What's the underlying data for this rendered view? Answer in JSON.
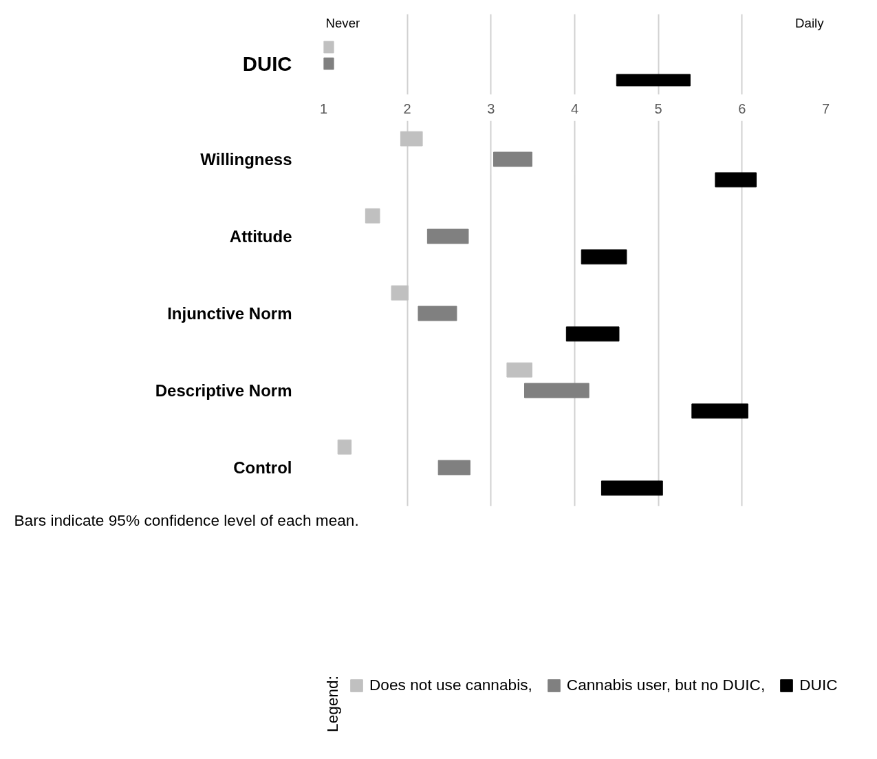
{
  "chart_data": [
    {
      "type": "bar",
      "orientation": "horizontal",
      "categories": [
        "DUIC"
      ],
      "xlim": [
        1,
        7
      ],
      "xticks": [
        1,
        2,
        3,
        4,
        5,
        6,
        7
      ],
      "tick_labels": "y",
      "grid": "x",
      "annotations": [
        "Never",
        "Daily"
      ],
      "series": [
        {
          "color": "#c0c0c0",
          "base": [
            1.0
          ],
          "values": [
            0.12
          ]
        },
        {
          "color": "#808080",
          "base": [
            1.0
          ],
          "values": [
            0.12
          ]
        },
        {
          "color": "#000000",
          "base": [
            4.5
          ],
          "values": [
            0.88
          ]
        }
      ]
    },
    {
      "type": "bar",
      "orientation": "horizontal",
      "categories": [
        "Willingness",
        "Attitude",
        "Injunctive Norm",
        "Descriptive Norm",
        "Control"
      ],
      "xlim": [
        1,
        7
      ],
      "xticks": [
        1,
        2,
        3,
        4,
        5,
        6,
        7
      ],
      "grid": "x",
      "legend": "bottom",
      "legend_title": "Legend:",
      "annotations": [
        "Bars indicate 95% confidence level of each mean."
      ],
      "series": [
        {
          "name": "Does not use cannabis,",
          "color": "#c0c0c0",
          "base": [
            1.92,
            1.5,
            1.81,
            3.19,
            1.17
          ],
          "values": [
            0.26,
            0.17,
            0.2,
            0.3,
            0.16
          ]
        },
        {
          "name": "Cannabis user, but no DUIC,",
          "color": "#808080",
          "base": [
            3.03,
            2.24,
            2.13,
            3.4,
            2.37
          ],
          "values": [
            0.46,
            0.49,
            0.46,
            0.77,
            0.38
          ]
        },
        {
          "name": "DUIC",
          "color": "#000000",
          "base": [
            5.68,
            4.08,
            3.9,
            5.4,
            4.32
          ],
          "values": [
            0.49,
            0.54,
            0.63,
            0.67,
            0.73
          ]
        }
      ]
    }
  ]
}
